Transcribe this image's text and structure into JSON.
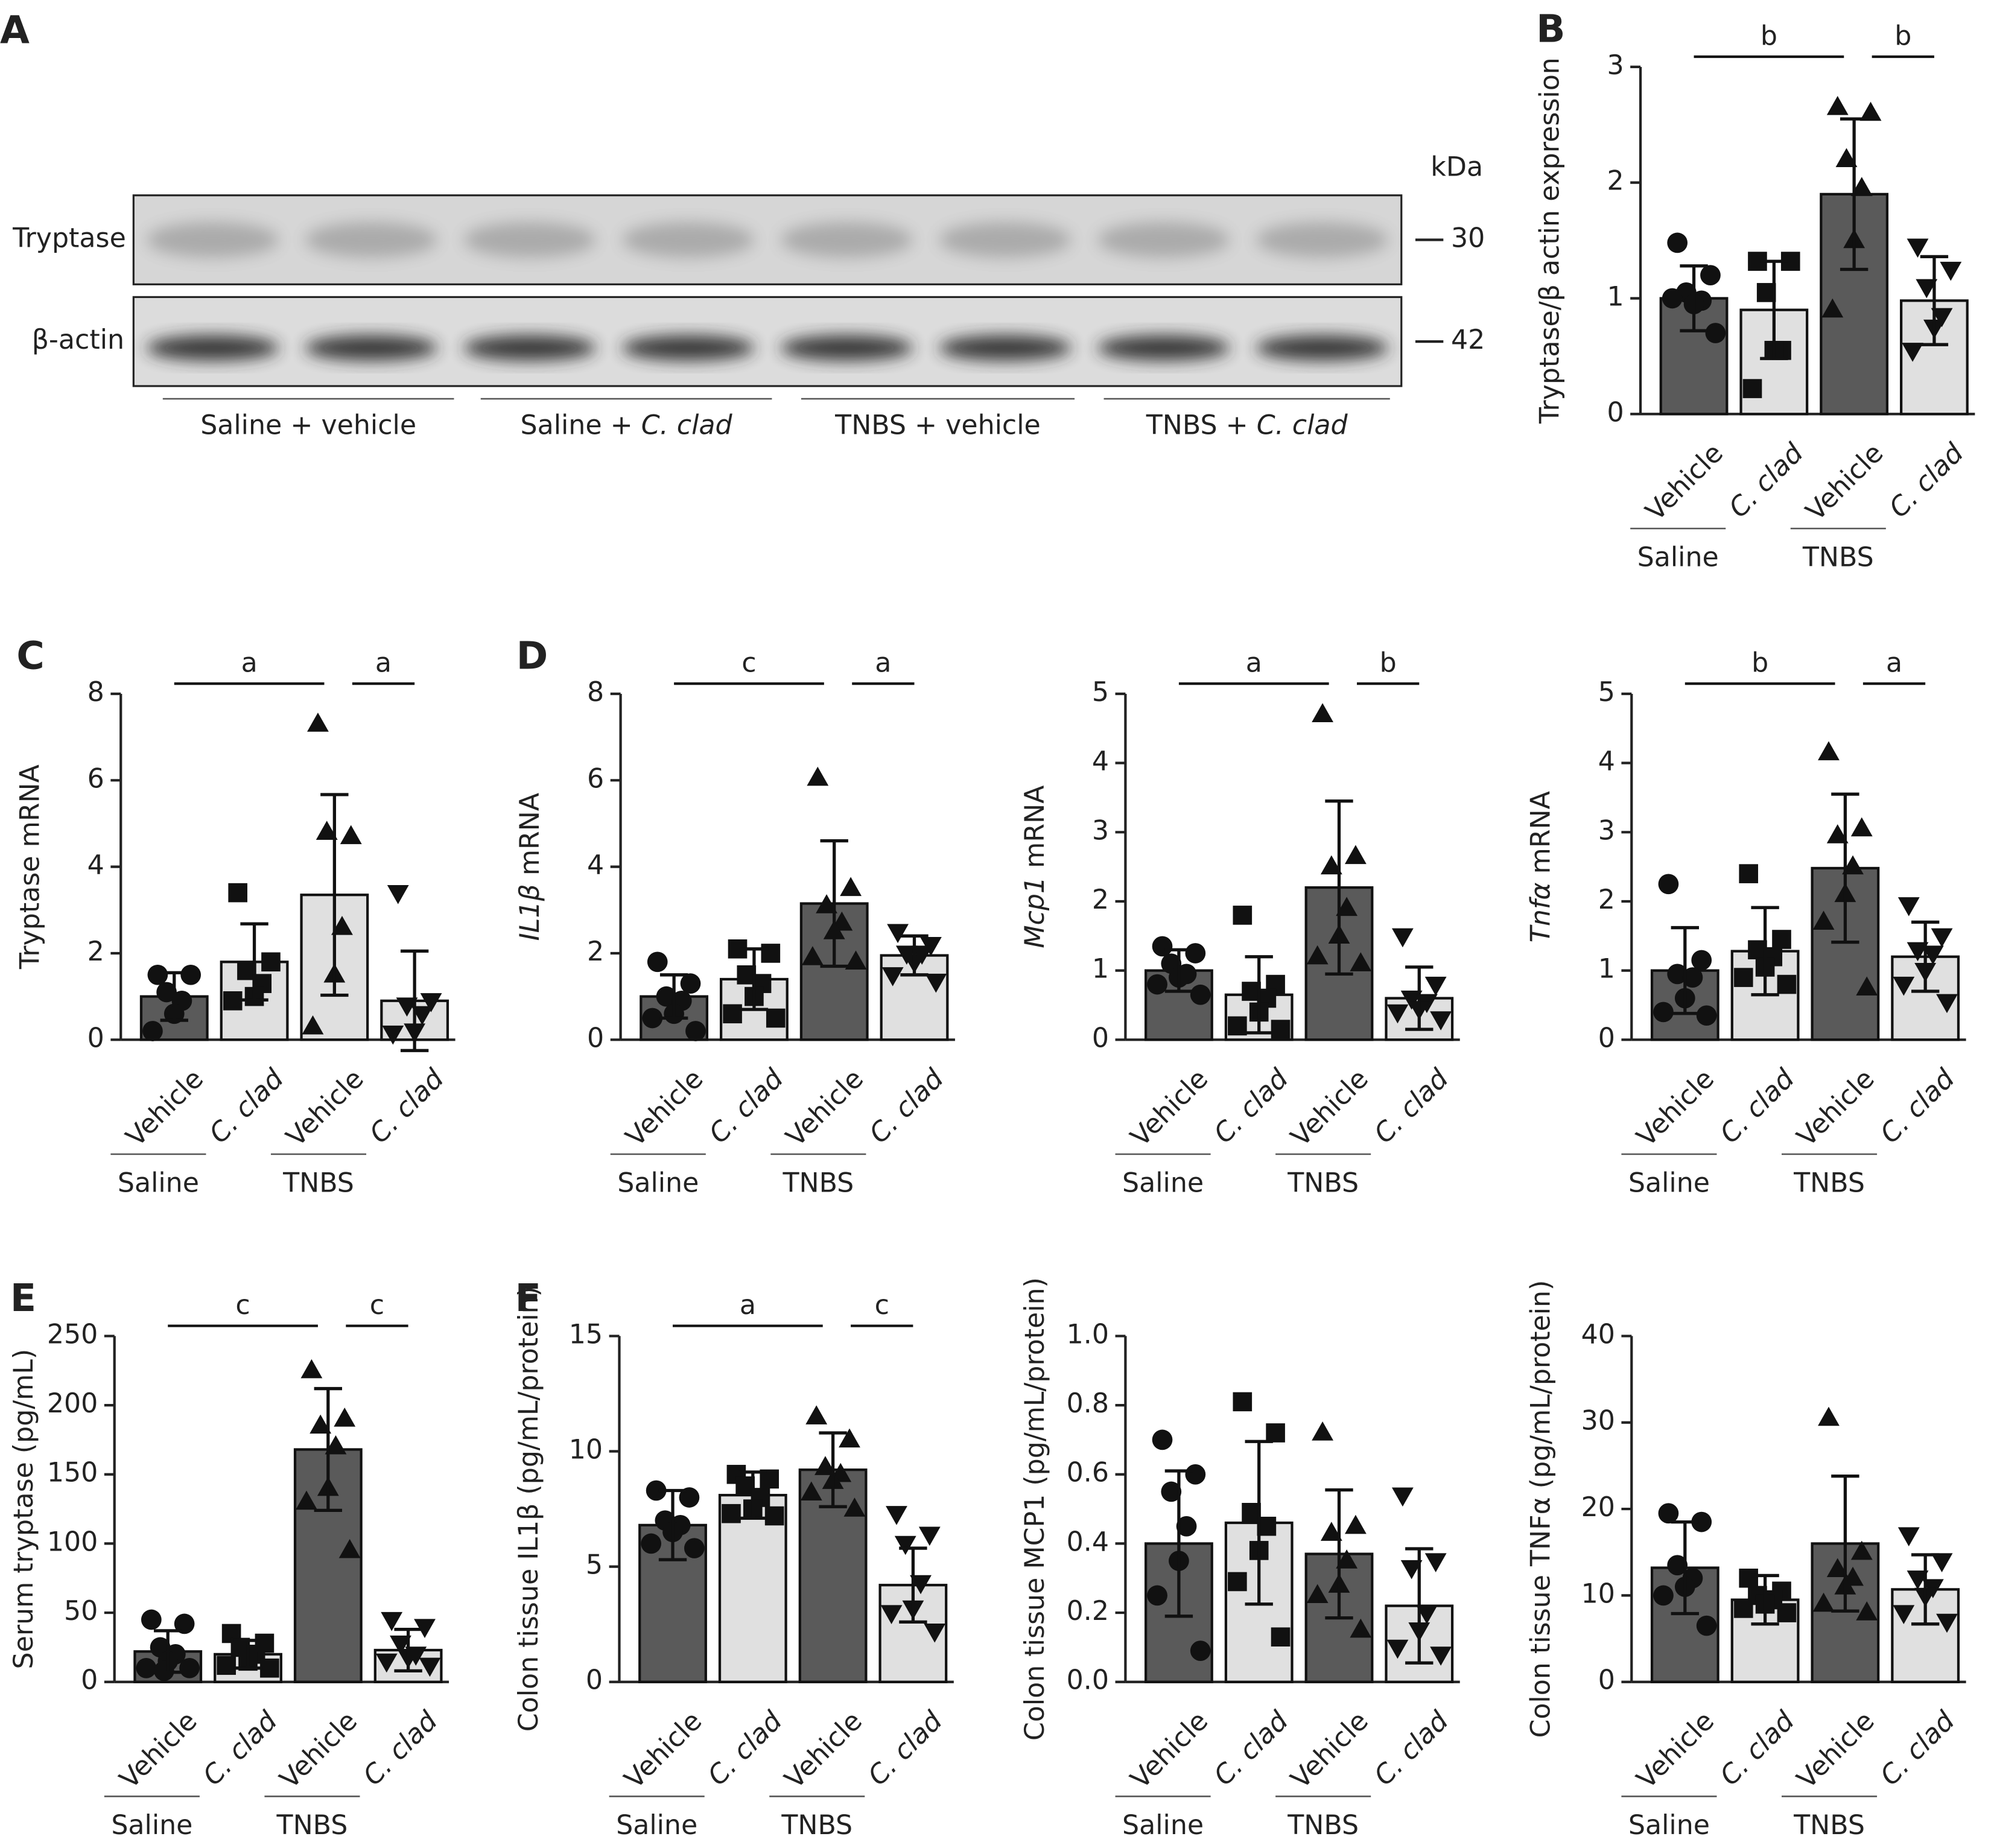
{
  "blot": {
    "label": "A",
    "unit": "kDa",
    "rows": [
      {
        "name": "Tryptase",
        "size": 30
      },
      {
        "name": "β-actin",
        "size": 42
      }
    ],
    "lanes": [
      [
        {
          "text": "Saline + vehicle"
        }
      ],
      [
        {
          "text": "Saline + "
        },
        {
          "text": "C. clad",
          "italic": true
        }
      ],
      [
        {
          "text": "TNBS + vehicle"
        }
      ],
      [
        {
          "text": "TNBS + "
        },
        {
          "text": "C. clad",
          "italic": true
        }
      ]
    ]
  },
  "chart_data": [
    {
      "type": "bar",
      "panel": "B",
      "ylabel": "Tryptase/β actin expression",
      "categories": [
        "Vehicle",
        "C. clad",
        "Vehicle",
        "C. clad"
      ],
      "category_italic": [
        false,
        true,
        false,
        true
      ],
      "groups": [
        "Saline",
        "TNBS"
      ],
      "colors": [
        "#5a5a5a",
        "#e0e0e0",
        "#5a5a5a",
        "#e0e0e0"
      ],
      "markers": [
        "circle",
        "square",
        "triangle",
        "triangle-down"
      ],
      "values": [
        1.0,
        0.9,
        1.9,
        0.98
      ],
      "errors": [
        0.28,
        0.42,
        0.65,
        0.38
      ],
      "points": [
        [
          1.48,
          1.2,
          1.05,
          0.98,
          0.95,
          1.0,
          0.7
        ],
        [
          1.32,
          1.32,
          1.05,
          0.55,
          0.55,
          0.22
        ],
        [
          2.65,
          2.6,
          2.2,
          1.95,
          1.5,
          0.9
        ],
        [
          1.45,
          1.25,
          1.1,
          0.85,
          0.75,
          0.55
        ]
      ],
      "significance": [
        "b",
        "b"
      ],
      "ylim": [
        0,
        3
      ],
      "yticks": [
        0,
        1,
        2,
        3
      ]
    },
    {
      "type": "bar",
      "panel": "C",
      "ylabel": "Tryptase mRNA",
      "categories": [
        "Vehicle",
        "C. clad",
        "Vehicle",
        "C. clad"
      ],
      "category_italic": [
        false,
        true,
        false,
        true
      ],
      "groups": [
        "Saline",
        "TNBS"
      ],
      "colors": [
        "#5a5a5a",
        "#e0e0e0",
        "#e0e0e0",
        "#e0e0e0"
      ],
      "markers": [
        "circle",
        "square",
        "triangle",
        "triangle-down"
      ],
      "values": [
        1.0,
        1.8,
        3.35,
        0.9
      ],
      "errors": [
        0.55,
        0.88,
        2.32,
        1.15
      ],
      "points": [
        [
          1.5,
          1.5,
          1.1,
          0.9,
          0.6,
          0.2
        ],
        [
          3.4,
          1.8,
          1.6,
          1.3,
          1.0,
          0.9
        ],
        [
          7.3,
          4.7,
          4.8,
          2.6,
          1.5,
          0.3
        ],
        [
          3.4,
          0.9,
          0.8,
          0.6,
          0.2,
          0.15
        ]
      ],
      "significance": [
        "a",
        "a"
      ],
      "ylim": [
        0,
        8
      ],
      "yticks": [
        0,
        2,
        4,
        6,
        8
      ]
    },
    {
      "type": "bar",
      "panel": "D",
      "ylabel": [
        {
          "text": "IL1β",
          "italic": true
        },
        {
          "text": " mRNA"
        }
      ],
      "categories": [
        "Vehicle",
        "C. clad",
        "Vehicle",
        "C. clad"
      ],
      "category_italic": [
        false,
        true,
        false,
        true
      ],
      "groups": [
        "Saline",
        "TNBS"
      ],
      "colors": [
        "#5a5a5a",
        "#e0e0e0",
        "#5a5a5a",
        "#e0e0e0"
      ],
      "markers": [
        "circle",
        "square",
        "triangle",
        "triangle-down"
      ],
      "values": [
        1.0,
        1.4,
        3.15,
        1.95
      ],
      "errors": [
        0.5,
        0.7,
        1.45,
        0.45
      ],
      "points": [
        [
          1.8,
          1.3,
          1.0,
          0.9,
          0.6,
          0.5,
          0.2
        ],
        [
          2.1,
          2.0,
          1.5,
          1.3,
          1.0,
          0.6,
          0.5
        ],
        [
          6.05,
          3.5,
          3.1,
          2.7,
          2.5,
          1.9,
          1.8
        ],
        [
          2.5,
          2.2,
          2.0,
          2.0,
          1.8,
          1.5,
          1.35
        ]
      ],
      "significance": [
        "c",
        "a"
      ],
      "ylim": [
        0,
        8
      ],
      "yticks": [
        0,
        2,
        4,
        6,
        8
      ]
    },
    {
      "type": "bar",
      "ylabel": [
        {
          "text": "Mcp1",
          "italic": true
        },
        {
          "text": " mRNA"
        }
      ],
      "categories": [
        "Vehicle",
        "C. clad",
        "Vehicle",
        "C. clad"
      ],
      "category_italic": [
        false,
        true,
        false,
        true
      ],
      "groups": [
        "Saline",
        "TNBS"
      ],
      "colors": [
        "#5a5a5a",
        "#e0e0e0",
        "#5a5a5a",
        "#e0e0e0"
      ],
      "markers": [
        "circle",
        "square",
        "triangle",
        "triangle-down"
      ],
      "values": [
        1.0,
        0.65,
        2.2,
        0.6
      ],
      "errors": [
        0.3,
        0.55,
        1.25,
        0.45
      ],
      "points": [
        [
          1.35,
          1.25,
          1.1,
          0.95,
          0.9,
          0.8,
          0.65
        ],
        [
          1.8,
          0.8,
          0.7,
          0.6,
          0.4,
          0.2,
          0.15
        ],
        [
          4.7,
          2.65,
          2.5,
          1.9,
          1.5,
          1.2,
          1.1
        ],
        [
          1.5,
          0.8,
          0.6,
          0.55,
          0.45,
          0.4,
          0.3
        ]
      ],
      "significance": [
        "a",
        "b"
      ],
      "ylim": [
        0,
        5
      ],
      "yticks": [
        0,
        1,
        2,
        3,
        4,
        5
      ]
    },
    {
      "type": "bar",
      "ylabel": [
        {
          "text": "Tnfα",
          "italic": true
        },
        {
          "text": " mRNA"
        }
      ],
      "categories": [
        "Vehicle",
        "C. clad",
        "Vehicle",
        "C. clad"
      ],
      "category_italic": [
        false,
        true,
        false,
        true
      ],
      "groups": [
        "Saline",
        "TNBS"
      ],
      "colors": [
        "#5a5a5a",
        "#e0e0e0",
        "#5a5a5a",
        "#e0e0e0"
      ],
      "markers": [
        "circle",
        "square",
        "triangle",
        "triangle-down"
      ],
      "values": [
        1.0,
        1.28,
        2.48,
        1.2
      ],
      "errors": [
        0.62,
        0.63,
        1.07,
        0.5
      ],
      "points": [
        [
          2.25,
          1.15,
          0.95,
          0.9,
          0.6,
          0.4,
          0.35
        ],
        [
          2.4,
          1.45,
          1.3,
          1.2,
          1.05,
          0.9,
          0.8
        ],
        [
          4.15,
          3.05,
          2.95,
          2.5,
          2.1,
          1.7,
          0.75
        ],
        [
          1.95,
          1.5,
          1.3,
          1.25,
          1.0,
          0.8,
          0.55
        ]
      ],
      "significance": [
        "b",
        "a"
      ],
      "ylim": [
        0,
        5
      ],
      "yticks": [
        0,
        1,
        2,
        3,
        4,
        5
      ]
    },
    {
      "type": "bar",
      "panel": "E",
      "ylabel": "Serum tryptase (pg/mL)",
      "categories": [
        "Vehicle",
        "C. clad",
        "Vehicle",
        "C. clad"
      ],
      "category_italic": [
        false,
        true,
        false,
        true
      ],
      "groups": [
        "Saline",
        "TNBS"
      ],
      "colors": [
        "#5a5a5a",
        "#e0e0e0",
        "#5a5a5a",
        "#e0e0e0"
      ],
      "markers": [
        "circle",
        "square",
        "triangle",
        "triangle-down"
      ],
      "values": [
        22,
        20,
        168,
        23
      ],
      "errors": [
        15,
        10,
        44,
        15
      ],
      "points": [
        [
          45,
          42,
          25,
          20,
          15,
          10,
          10,
          8
        ],
        [
          35,
          28,
          25,
          20,
          15,
          12,
          10
        ],
        [
          225,
          190,
          185,
          170,
          140,
          130,
          95
        ],
        [
          45,
          40,
          28,
          20,
          18,
          15,
          12
        ]
      ],
      "significance": [
        "c",
        "c"
      ],
      "ylim": [
        0,
        250
      ],
      "yticks": [
        0,
        50,
        100,
        150,
        200,
        250
      ]
    },
    {
      "type": "bar",
      "panel": "F",
      "ylabel": "Colon tissue IL1β (pg/mL/protein)",
      "categories": [
        "Vehicle",
        "C. clad",
        "Vehicle",
        "C. clad"
      ],
      "category_italic": [
        false,
        true,
        false,
        true
      ],
      "groups": [
        "Saline",
        "TNBS"
      ],
      "colors": [
        "#5a5a5a",
        "#e0e0e0",
        "#5a5a5a",
        "#e0e0e0"
      ],
      "markers": [
        "circle",
        "square",
        "triangle",
        "triangle-down"
      ],
      "values": [
        6.8,
        8.1,
        9.2,
        4.2
      ],
      "errors": [
        1.5,
        1.0,
        1.6,
        1.6
      ],
      "points": [
        [
          8.3,
          8.0,
          7.0,
          6.8,
          6.5,
          6.0,
          5.8
        ],
        [
          9.0,
          8.8,
          8.5,
          8.0,
          7.5,
          7.3,
          7.2
        ],
        [
          11.5,
          10.5,
          9.3,
          9.0,
          8.7,
          8.2,
          7.5
        ],
        [
          7.3,
          6.4,
          6.0,
          4.3,
          3.2,
          3.0,
          2.2
        ]
      ],
      "significance": [
        "a",
        "c"
      ],
      "ylim": [
        0,
        15
      ],
      "yticks": [
        0,
        5,
        10,
        15
      ]
    },
    {
      "type": "bar",
      "ylabel": "Colon tissue MCP1 (pg/mL/protein)",
      "categories": [
        "Vehicle",
        "C. clad",
        "Vehicle",
        "C. clad"
      ],
      "category_italic": [
        false,
        true,
        false,
        true
      ],
      "groups": [
        "Saline",
        "TNBS"
      ],
      "colors": [
        "#5a5a5a",
        "#e0e0e0",
        "#5a5a5a",
        "#e0e0e0"
      ],
      "markers": [
        "circle",
        "square",
        "triangle",
        "triangle-down"
      ],
      "values": [
        0.4,
        0.46,
        0.37,
        0.22
      ],
      "errors": [
        0.21,
        0.235,
        0.185,
        0.165
      ],
      "points": [
        [
          0.7,
          0.6,
          0.55,
          0.45,
          0.35,
          0.25,
          0.09
        ],
        [
          0.81,
          0.72,
          0.49,
          0.45,
          0.38,
          0.29,
          0.13
        ],
        [
          0.72,
          0.45,
          0.43,
          0.35,
          0.28,
          0.25,
          0.15
        ],
        [
          0.54,
          0.35,
          0.33,
          0.2,
          0.15,
          0.1,
          0.08
        ]
      ],
      "ylim": [
        0,
        1
      ],
      "yticks": [
        {
          "value": 0,
          "label": "0.0"
        },
        0.2,
        0.4,
        0.6,
        0.8,
        {
          "value": 1,
          "label": "1.0"
        }
      ]
    },
    {
      "type": "bar",
      "ylabel": "Colon tissue TNFα (pg/mL/protein)",
      "categories": [
        "Vehicle",
        "C. clad",
        "Vehicle",
        "C. clad"
      ],
      "category_italic": [
        false,
        true,
        false,
        true
      ],
      "groups": [
        "Saline",
        "TNBS"
      ],
      "colors": [
        "#5a5a5a",
        "#e0e0e0",
        "#5a5a5a",
        "#e0e0e0"
      ],
      "markers": [
        "circle",
        "square",
        "triangle",
        "triangle-down"
      ],
      "values": [
        13.2,
        9.5,
        16,
        10.7
      ],
      "errors": [
        5.3,
        2.8,
        7.8,
        4.0
      ],
      "points": [
        [
          19.5,
          18.5,
          13.5,
          12,
          11,
          10,
          6.5
        ],
        [
          12,
          10.5,
          10,
          9.5,
          9,
          8.5,
          8
        ],
        [
          30.5,
          15,
          13,
          12,
          11,
          9,
          8
        ],
        [
          17,
          14,
          12,
          11,
          10,
          8,
          7
        ]
      ],
      "ylim": [
        0,
        40
      ],
      "yticks": [
        0,
        10,
        20,
        30,
        40
      ]
    }
  ]
}
